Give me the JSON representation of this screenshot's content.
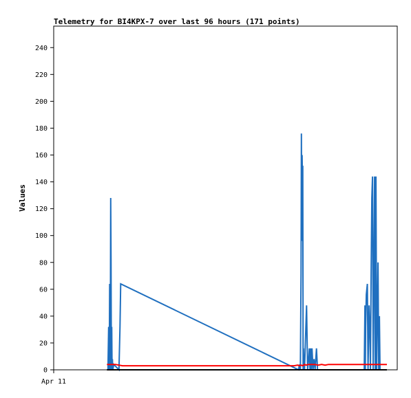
{
  "chart_data": {
    "type": "line",
    "title": "Telemetry for BI4KPX-7 over last 96 hours (171 points)",
    "ylabel": "Values",
    "xlabel": "",
    "x_tick_labels": [
      "Apr 11"
    ],
    "y_ticks": [
      0,
      20,
      40,
      60,
      80,
      100,
      120,
      140,
      160,
      180,
      200,
      220,
      240
    ],
    "xlim": [
      0,
      100
    ],
    "ylim": [
      0,
      256
    ],
    "grid": false,
    "legend": "none",
    "series": [
      {
        "color": "#1f6fbf",
        "x": [
          15.8,
          15.9,
          16.0,
          16.1,
          16.2,
          16.3,
          16.4,
          16.5,
          16.6,
          16.7,
          16.8,
          16.9,
          17.0,
          17.1,
          17.2,
          17.5,
          19.0,
          19.3,
          19.5,
          71.3,
          71.5,
          71.8,
          72.0,
          72.1,
          72.2,
          72.3,
          72.4,
          72.5,
          72.6,
          72.7,
          72.8,
          72.9,
          73.0,
          73.3,
          73.6,
          73.9,
          74.2,
          74.4,
          74.6,
          74.8,
          75.0,
          75.2,
          75.5,
          75.8,
          76.1,
          76.5,
          76.8,
          77.1,
          90.4,
          90.5,
          90.6,
          90.7,
          90.8,
          91.0,
          91.3,
          91.5,
          91.8,
          92.0,
          92.2,
          92.4,
          92.6,
          92.8,
          93.0,
          93.2,
          93.4,
          93.6,
          93.8,
          94.0,
          94.2,
          94.4,
          94.6,
          94.8,
          95.0,
          95.2,
          95.5,
          95.8,
          96.2,
          96.5
        ],
        "y": [
          0,
          16,
          32,
          0,
          16,
          64,
          0,
          32,
          128,
          80,
          0,
          32,
          0,
          8,
          0,
          4,
          0,
          32,
          64,
          0,
          4,
          0,
          72,
          176,
          96,
          160,
          144,
          152,
          0,
          16,
          0,
          4,
          0,
          24,
          48,
          0,
          8,
          16,
          0,
          16,
          0,
          16,
          0,
          8,
          0,
          16,
          0,
          0,
          0,
          24,
          48,
          0,
          32,
          56,
          64,
          0,
          48,
          32,
          0,
          72,
          128,
          144,
          0,
          72,
          144,
          0,
          144,
          0,
          40,
          80,
          0,
          40,
          0,
          0,
          0,
          0,
          0,
          0
        ]
      },
      {
        "color": "#ff0000",
        "x": [
          15.5,
          18,
          20,
          25,
          30,
          35,
          40,
          45,
          50,
          55,
          60,
          65,
          70,
          71,
          71.5,
          72,
          72.5,
          73,
          73.5,
          74,
          75,
          76,
          77,
          78,
          79,
          80,
          82,
          84,
          86,
          88,
          90,
          92,
          94,
          96,
          97
        ],
        "y": [
          4,
          4,
          3,
          3,
          3,
          3,
          3,
          3,
          3,
          3,
          3,
          3,
          3,
          3.5,
          3,
          3.5,
          3,
          4,
          3.5,
          4,
          4,
          4,
          3.5,
          4,
          3.5,
          4,
          4,
          4,
          4,
          4,
          4,
          4,
          4,
          4,
          4
        ]
      },
      {
        "color": "#000000",
        "x": [
          15.5,
          97
        ],
        "y": [
          0,
          0
        ]
      }
    ]
  }
}
